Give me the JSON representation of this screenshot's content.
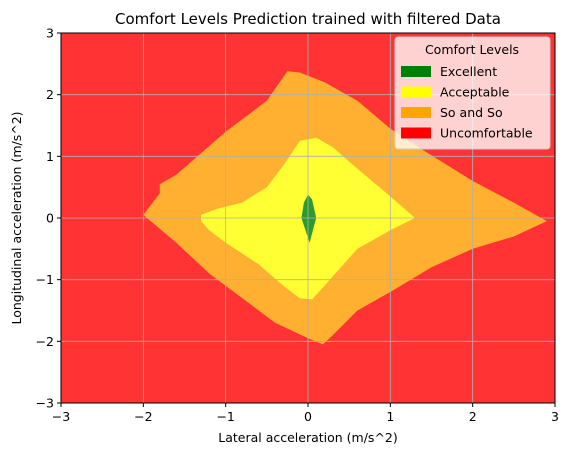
{
  "chart_data": {
    "type": "contour",
    "title": "Comfort Levels Prediction trained with filtered Data",
    "xlabel": "Lateral acceleration (m/s^2)",
    "ylabel": "Longitudinal acceleration (m/s^2)",
    "xlim": [
      -3,
      3
    ],
    "ylim": [
      -3,
      3
    ],
    "xticks": [
      -3,
      -2,
      -1,
      0,
      1,
      2,
      3
    ],
    "yticks": [
      -3,
      -2,
      -1,
      0,
      1,
      2,
      3
    ],
    "xtick_labels": [
      "−3",
      "−2",
      "−1",
      "0",
      "1",
      "2",
      "3"
    ],
    "ytick_labels": [
      "−3",
      "−2",
      "−1",
      "0",
      "1",
      "2",
      "3"
    ],
    "grid": true,
    "legend": {
      "title": "Comfort Levels",
      "position": "top-right",
      "entries": [
        {
          "label": "Excellent",
          "color": "#008000"
        },
        {
          "label": "Acceptable",
          "color": "#ffff00"
        },
        {
          "label": "So and So",
          "color": "#ffa500"
        },
        {
          "label": "Uncomfortable",
          "color": "#ff0000"
        }
      ]
    },
    "regions": [
      {
        "level": "Uncomfortable",
        "color": "#ff3333",
        "polygon": [
          [
            -3,
            -3
          ],
          [
            3,
            -3
          ],
          [
            3,
            3
          ],
          [
            -3,
            3
          ]
        ]
      },
      {
        "level": "So and So",
        "color": "#ffb030",
        "polygon": [
          [
            -2.0,
            0.05
          ],
          [
            -1.8,
            0.4
          ],
          [
            -1.8,
            0.55
          ],
          [
            -1.6,
            0.7
          ],
          [
            -1.0,
            1.4
          ],
          [
            -0.6,
            1.8
          ],
          [
            -0.5,
            1.9
          ],
          [
            -0.25,
            2.38
          ],
          [
            -0.1,
            2.36
          ],
          [
            0.2,
            2.2
          ],
          [
            0.6,
            1.9
          ],
          [
            1.0,
            1.45
          ],
          [
            1.4,
            1.1
          ],
          [
            2.0,
            0.6
          ],
          [
            2.5,
            0.25
          ],
          [
            2.9,
            -0.05
          ],
          [
            2.5,
            -0.3
          ],
          [
            2.0,
            -0.5
          ],
          [
            1.5,
            -0.8
          ],
          [
            1.0,
            -1.2
          ],
          [
            0.6,
            -1.5
          ],
          [
            0.3,
            -1.9
          ],
          [
            0.18,
            -2.05
          ],
          [
            0.0,
            -1.95
          ],
          [
            -0.4,
            -1.7
          ],
          [
            -0.7,
            -1.4
          ],
          [
            -1.2,
            -0.9
          ],
          [
            -1.6,
            -0.4
          ]
        ]
      },
      {
        "level": "Acceptable",
        "color": "#ffff33",
        "polygon": [
          [
            -1.3,
            0.05
          ],
          [
            -1.1,
            0.15
          ],
          [
            -0.8,
            0.25
          ],
          [
            -0.5,
            0.5
          ],
          [
            -0.3,
            0.85
          ],
          [
            -0.1,
            1.25
          ],
          [
            0.1,
            1.3
          ],
          [
            0.3,
            1.15
          ],
          [
            0.6,
            0.8
          ],
          [
            1.0,
            0.35
          ],
          [
            1.3,
            0.0
          ],
          [
            1.0,
            -0.2
          ],
          [
            0.6,
            -0.5
          ],
          [
            0.4,
            -0.8
          ],
          [
            0.2,
            -1.1
          ],
          [
            0.05,
            -1.32
          ],
          [
            -0.1,
            -1.3
          ],
          [
            -0.3,
            -1.1
          ],
          [
            -0.6,
            -0.75
          ],
          [
            -1.0,
            -0.4
          ],
          [
            -1.2,
            -0.2
          ],
          [
            -1.3,
            -0.05
          ]
        ]
      },
      {
        "level": "Excellent",
        "color": "#2e9a2e",
        "polygon": [
          [
            -0.08,
            0.0
          ],
          [
            -0.05,
            0.25
          ],
          [
            0.0,
            0.38
          ],
          [
            0.05,
            0.3
          ],
          [
            0.1,
            0.0
          ],
          [
            0.06,
            -0.2
          ],
          [
            0.02,
            -0.4
          ],
          [
            -0.03,
            -0.2
          ]
        ]
      }
    ]
  }
}
